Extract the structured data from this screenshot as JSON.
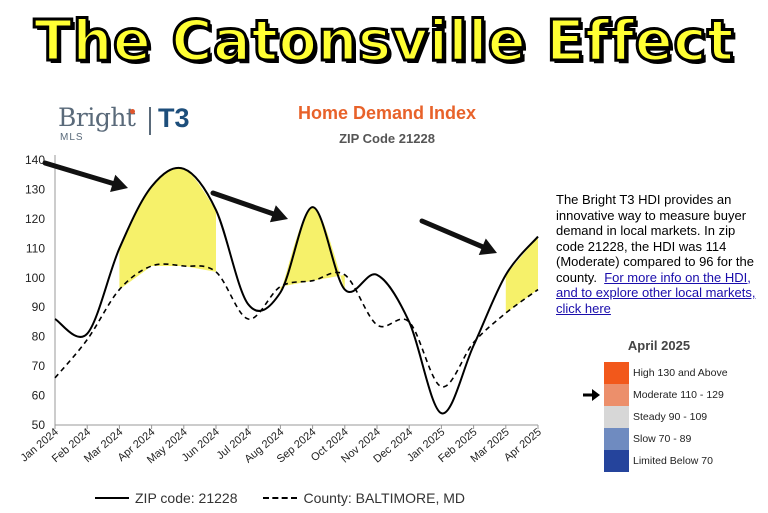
{
  "banner": {
    "title": "The Catonsville Effect"
  },
  "logo": {
    "brand": "Bright",
    "sub": "MLS",
    "partner": "T3"
  },
  "chart_data": {
    "type": "line",
    "title": "Home Demand Index",
    "subtitle": "ZIP Code 21228",
    "categories": [
      "Jan 2024",
      "Feb 2024",
      "Mar 2024",
      "Apr 2024",
      "May 2024",
      "Jun 2024",
      "Jul 2024",
      "Aug 2024",
      "Sep 2024",
      "Oct 2024",
      "Nov 2024",
      "Dec 2024",
      "Jan 2025",
      "Feb 2025",
      "Mar 2025",
      "Apr 2025"
    ],
    "series": [
      {
        "name": "ZIP code: 21228",
        "style": "solid",
        "values": [
          86,
          81,
          110,
          131,
          137,
          123,
          91,
          95,
          124,
          96,
          101,
          85,
          54,
          77,
          101,
          114
        ]
      },
      {
        "name": "County: BALTIMORE, MD",
        "style": "dashed",
        "values": [
          66,
          79,
          96,
          104,
          104,
          102,
          86,
          97,
          99,
          101,
          84,
          85,
          63,
          78,
          88,
          96
        ]
      }
    ],
    "ylim": [
      50,
      140
    ],
    "yticks": [
      50,
      60,
      70,
      80,
      90,
      100,
      110,
      120,
      130,
      140
    ],
    "grid": false,
    "legend": "bottom",
    "highlight_color": "#f5ef5a",
    "annotations": [
      {
        "type": "highlight-area",
        "from": "Mar 2024",
        "to": "Jun 2024"
      },
      {
        "type": "highlight-area",
        "from": "Aug 2024",
        "to": "Oct 2024"
      },
      {
        "type": "highlight-area",
        "from": "Mar 2025",
        "to": "Apr 2025"
      },
      {
        "type": "arrow",
        "target": "Apr 2024"
      },
      {
        "type": "arrow",
        "target": "Aug 2024"
      },
      {
        "type": "arrow",
        "target": "Mar 2025"
      }
    ]
  },
  "description": {
    "text": "The Bright T3 HDI provides an innovative way to measure buyer demand in local markets. In zip code 21228, the HDI was 114 (Moderate) compared to 96 for the county.",
    "link": "For more info on the HDI, and to explore other local markets, click here"
  },
  "scale_legend": {
    "title": "April 2025",
    "current": "Moderate 110 - 129",
    "bands": [
      {
        "label": "High 130 and Above",
        "color": "#f2581b"
      },
      {
        "label": "Moderate 110 - 129",
        "color": "#ec8f6b"
      },
      {
        "label": "Steady 90 - 109",
        "color": "#d7d7d7"
      },
      {
        "label": "Slow 70 - 89",
        "color": "#6f8bc0"
      },
      {
        "label": "Limited Below 70",
        "color": "#25449c"
      }
    ]
  },
  "bottom_legend": {
    "solid": "ZIP code: 21228",
    "dashed": "County: BALTIMORE, MD"
  }
}
